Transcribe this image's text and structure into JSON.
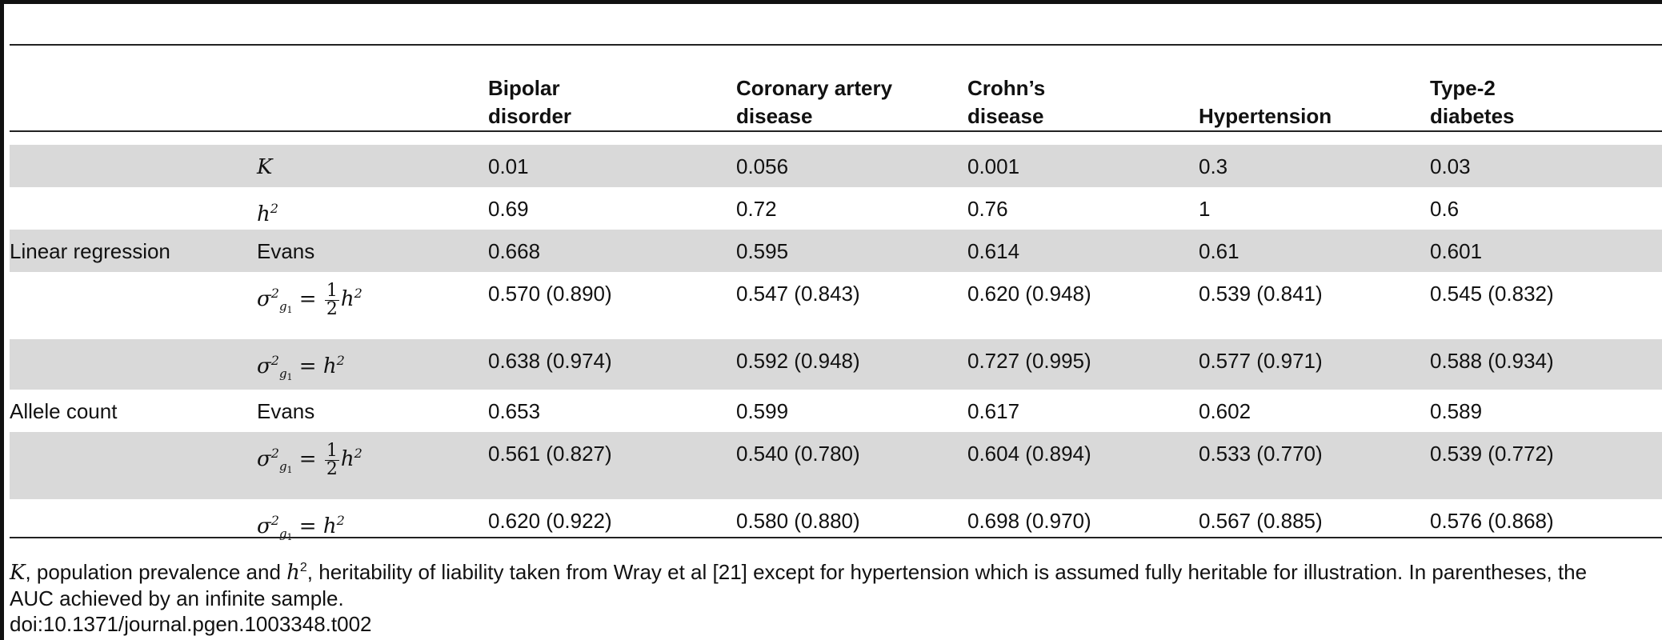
{
  "table": {
    "headers": [
      "",
      "",
      "Bipolar\ndisorder",
      "Coronary artery\ndisease",
      "Crohn’s\ndisease",
      "Hypertension",
      "Type-2\ndiabetes"
    ],
    "header_lines": [
      [
        "Bipolar",
        "disorder"
      ],
      [
        "Coronary artery",
        "disease"
      ],
      [
        "Crohn’s",
        "disease"
      ],
      [
        "Hypertension"
      ],
      [
        "Type-2",
        "diabetes"
      ]
    ],
    "rows": [
      {
        "group": "",
        "label": "K",
        "values": [
          "0.01",
          "0.056",
          "0.001",
          "0.3",
          "0.03"
        ]
      },
      {
        "group": "",
        "label": "h2",
        "values": [
          "0.69",
          "0.72",
          "0.76",
          "1",
          "0.6"
        ]
      },
      {
        "group": "Linear regression",
        "label": "Evans",
        "values": [
          "0.668",
          "0.595",
          "0.614",
          "0.61",
          "0.601"
        ]
      },
      {
        "group": "",
        "label": "σ2g1 = 1/2 h2",
        "values": [
          "0.570 (0.890)",
          "0.547 (0.843)",
          "0.620 (0.948)",
          "0.539 (0.841)",
          "0.545 (0.832)"
        ]
      },
      {
        "group": "",
        "label": "σ2g1 = h2",
        "values": [
          "0.638 (0.974)",
          "0.592 (0.948)",
          "0.727 (0.995)",
          "0.577 (0.971)",
          "0.588 (0.934)"
        ]
      },
      {
        "group": "Allele count",
        "label": "Evans",
        "values": [
          "0.653",
          "0.599",
          "0.617",
          "0.602",
          "0.589"
        ]
      },
      {
        "group": "",
        "label": "σ2g1 = 1/2 h2",
        "values": [
          "0.561 (0.827)",
          "0.540 (0.780)",
          "0.604 (0.894)",
          "0.533 (0.770)",
          "0.539 (0.772)"
        ]
      },
      {
        "group": "",
        "label": "σ2g1 = h2",
        "values": [
          "0.620 (0.922)",
          "0.580 (0.880)",
          "0.698 (0.970)",
          "0.567 (0.885)",
          "0.576 (0.868)"
        ]
      }
    ],
    "shaded_rows": [
      0,
      2,
      4,
      6
    ]
  },
  "footnote": {
    "line1_a": "K",
    "line1_b": ", population prevalence and ",
    "line1_c": "h",
    "line1_sup": "2",
    "line1_d": ", heritability of liability taken from Wray et al [21] except for hypertension which is assumed fully heritable for illustration. In parentheses, the",
    "line2": "AUC achieved by an infinite sample.",
    "doi": "doi:10.1371/journal.pgen.1003348.t002"
  }
}
